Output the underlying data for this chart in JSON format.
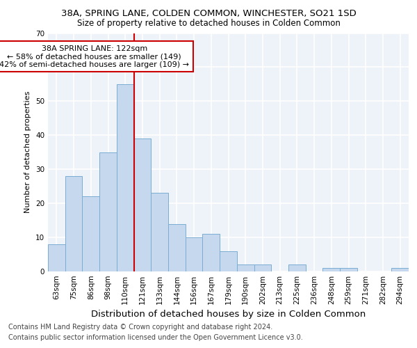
{
  "title_line1": "38A, SPRING LANE, COLDEN COMMON, WINCHESTER, SO21 1SD",
  "title_line2": "Size of property relative to detached houses in Colden Common",
  "xlabel": "Distribution of detached houses by size in Colden Common",
  "ylabel": "Number of detached properties",
  "categories": [
    "63sqm",
    "75sqm",
    "86sqm",
    "98sqm",
    "110sqm",
    "121sqm",
    "133sqm",
    "144sqm",
    "156sqm",
    "167sqm",
    "179sqm",
    "190sqm",
    "202sqm",
    "213sqm",
    "225sqm",
    "236sqm",
    "248sqm",
    "259sqm",
    "271sqm",
    "282sqm",
    "294sqm"
  ],
  "values": [
    8,
    28,
    22,
    35,
    55,
    39,
    23,
    14,
    10,
    11,
    6,
    2,
    2,
    0,
    2,
    0,
    1,
    1,
    0,
    0,
    1
  ],
  "bar_color": "#c5d8ed",
  "bar_edge_color": "#7aadd4",
  "vline_color": "#cc0000",
  "annotation_text": "38A SPRING LANE: 122sqm\n← 58% of detached houses are smaller (149)\n42% of semi-detached houses are larger (109) →",
  "annotation_box_color": "#ffffff",
  "annotation_box_edge": "#cc0000",
  "ylim": [
    0,
    70
  ],
  "yticks": [
    0,
    10,
    20,
    30,
    40,
    50,
    60,
    70
  ],
  "footer_line1": "Contains HM Land Registry data © Crown copyright and database right 2024.",
  "footer_line2": "Contains public sector information licensed under the Open Government Licence v3.0.",
  "bg_color": "#eef2f9",
  "grid_color": "#ffffff",
  "title_fontsize": 9.5,
  "subtitle_fontsize": 8.5,
  "xlabel_fontsize": 9.5,
  "ylabel_fontsize": 8,
  "tick_fontsize": 7.5,
  "annotation_fontsize": 8,
  "footer_fontsize": 7
}
